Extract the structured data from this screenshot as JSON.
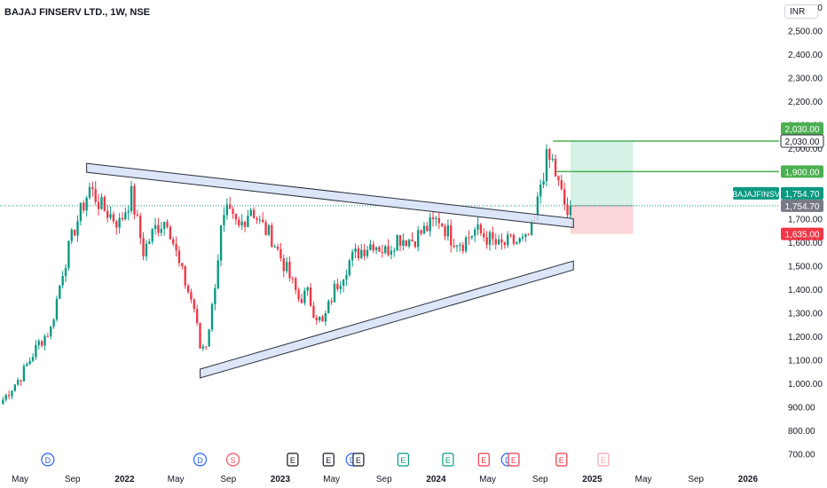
{
  "header": {
    "symbol_line": "BAJAJ FINSERV LTD., 1W, NSE",
    "currency": "INR"
  },
  "colors": {
    "up": "#089981",
    "down": "#f23645",
    "trendline_fill": "#d6e2f7",
    "trendline_stroke": "#2a2e39",
    "target_zone": "#d6f1e6",
    "stop_zone": "#fbd5d9",
    "level_green": "#4caf50",
    "price_tag_teal": "#089981",
    "last_price_gray": "#787b86",
    "stop_tag_red": "#f23645"
  },
  "chart_data": {
    "type": "candlestick",
    "timeframe": "1W",
    "yaxis_ticks": [
      "2,600.00",
      "2,500.00",
      "2,400.00",
      "2,300.00",
      "2,200.00",
      "2,100.00",
      "2,000.00",
      "1,900.00",
      "1,800.00",
      "1,700.00",
      "1,600.00",
      "1,500.00",
      "1,400.00",
      "1,300.00",
      "1,200.00",
      "1,100.00",
      "1,000.00",
      "900.00",
      "800.00",
      "700.00"
    ],
    "yaxis_tick_values": [
      2600,
      2500,
      2400,
      2300,
      2200,
      2100,
      2000,
      1900,
      1800,
      1700,
      1600,
      1500,
      1400,
      1300,
      1200,
      1100,
      1000,
      900,
      800,
      700
    ],
    "ylim": [
      660,
      2630
    ],
    "xaxis_ticks": [
      {
        "label": "May",
        "date": "2021-05-01",
        "bold": false
      },
      {
        "label": "Sep",
        "date": "2021-09-01",
        "bold": false
      },
      {
        "label": "2022",
        "date": "2022-01-01",
        "bold": true
      },
      {
        "label": "May",
        "date": "2022-05-01",
        "bold": false
      },
      {
        "label": "Sep",
        "date": "2022-09-01",
        "bold": false
      },
      {
        "label": "2023",
        "date": "2023-01-01",
        "bold": true
      },
      {
        "label": "May",
        "date": "2023-05-01",
        "bold": false
      },
      {
        "label": "Sep",
        "date": "2023-09-01",
        "bold": false
      },
      {
        "label": "2024",
        "date": "2024-01-01",
        "bold": true
      },
      {
        "label": "May",
        "date": "2024-05-01",
        "bold": false
      },
      {
        "label": "Sep",
        "date": "2024-09-01",
        "bold": false
      },
      {
        "label": "2025",
        "date": "2025-01-01",
        "bold": true
      },
      {
        "label": "May",
        "date": "2025-05-01",
        "bold": false
      },
      {
        "label": "Sep",
        "date": "2025-09-01",
        "bold": false
      },
      {
        "label": "2026",
        "date": "2026-01-01",
        "bold": true
      }
    ],
    "xlim": [
      "2021-03-15",
      "2026-03-15"
    ],
    "price_anchors": [
      [
        "2021-03-22",
        930
      ],
      [
        "2021-05-03",
        1030
      ],
      [
        "2021-06-14",
        1170
      ],
      [
        "2021-07-12",
        1230
      ],
      [
        "2021-08-09",
        1480
      ],
      [
        "2021-09-06",
        1660
      ],
      [
        "2021-10-11",
        1830
      ],
      [
        "2021-11-08",
        1750
      ],
      [
        "2021-12-20",
        1680
      ],
      [
        "2022-01-17",
        1800
      ],
      [
        "2022-02-14",
        1560
      ],
      [
        "2022-03-14",
        1660
      ],
      [
        "2022-04-11",
        1700
      ],
      [
        "2022-05-09",
        1500
      ],
      [
        "2022-06-13",
        1320
      ],
      [
        "2022-06-27",
        1150
      ],
      [
        "2022-07-11",
        1170
      ],
      [
        "2022-07-25",
        1320
      ],
      [
        "2022-08-15",
        1650
      ],
      [
        "2022-08-29",
        1720
      ],
      [
        "2022-09-26",
        1660
      ],
      [
        "2022-10-24",
        1750
      ],
      [
        "2022-11-14",
        1680
      ],
      [
        "2022-12-12",
        1620
      ],
      [
        "2023-01-16",
        1480
      ],
      [
        "2023-02-13",
        1360
      ],
      [
        "2023-03-06",
        1380
      ],
      [
        "2023-03-20",
        1310
      ],
      [
        "2023-04-10",
        1250
      ],
      [
        "2023-05-08",
        1400
      ],
      [
        "2023-06-12",
        1520
      ],
      [
        "2023-07-03",
        1560
      ],
      [
        "2023-08-07",
        1600
      ],
      [
        "2023-09-04",
        1560
      ],
      [
        "2023-10-02",
        1620
      ],
      [
        "2023-11-06",
        1610
      ],
      [
        "2023-12-11",
        1660
      ],
      [
        "2024-01-08",
        1700
      ],
      [
        "2024-02-05",
        1620
      ],
      [
        "2024-03-04",
        1600
      ],
      [
        "2024-04-01",
        1650
      ],
      [
        "2024-04-29",
        1620
      ],
      [
        "2024-05-27",
        1580
      ],
      [
        "2024-06-24",
        1600
      ],
      [
        "2024-07-29",
        1600
      ],
      [
        "2024-08-19",
        1680
      ],
      [
        "2024-09-02",
        1850
      ],
      [
        "2024-09-16",
        1950
      ],
      [
        "2024-09-30",
        1940
      ],
      [
        "2024-10-14",
        1840
      ],
      [
        "2024-10-28",
        1760
      ],
      [
        "2024-11-04",
        1720
      ],
      [
        "2024-11-11",
        1754.7
      ]
    ],
    "trendlines": [
      {
        "name": "upper",
        "from": [
          "2021-10-04",
          1935
        ],
        "to": [
          "2024-11-18",
          1700
        ]
      },
      {
        "name": "lower",
        "from": [
          "2022-06-27",
          1060
        ],
        "to": [
          "2024-11-18",
          1520
        ]
      }
    ],
    "position": {
      "entry": 1754.7,
      "target": 2030.0,
      "stop": 1635.0,
      "start": "2024-11-11",
      "end": "2025-04-07"
    },
    "horizontal_levels": [
      {
        "value": 2030.0,
        "start": "2024-10-01"
      },
      {
        "value": 1900.0,
        "start": "2024-10-07"
      }
    ],
    "price_labels": [
      {
        "text": "2,030.00",
        "value": 2030,
        "style": "green",
        "offset": -14
      },
      {
        "text": "2,030.00",
        "value": 2030,
        "style": "white",
        "offset": 0
      },
      {
        "text": "1,900.00",
        "value": 1900,
        "style": "green",
        "offset": 0
      },
      {
        "text": "1,754.70",
        "value": 1754.7,
        "style": "teal",
        "offset": -14
      },
      {
        "text": "1,754.70",
        "value": 1754.7,
        "style": "gray",
        "offset": 0
      },
      {
        "text": "1,635.00",
        "value": 1635,
        "style": "red",
        "offset": 0
      }
    ],
    "symbol_tag": "BAJAJFINSV",
    "event_markers": [
      {
        "letter": "D",
        "date": "2021-07-05",
        "kind": "dividend"
      },
      {
        "letter": "D",
        "date": "2022-06-27",
        "kind": "dividend"
      },
      {
        "letter": "S",
        "date": "2022-09-12",
        "kind": "split"
      },
      {
        "letter": "E",
        "date": "2023-01-30",
        "kind": "earnings-past"
      },
      {
        "letter": "E",
        "date": "2023-04-24",
        "kind": "earnings-past"
      },
      {
        "letter": "D",
        "date": "2023-06-19",
        "kind": "dividend"
      },
      {
        "letter": "E",
        "date": "2023-07-03",
        "kind": "earnings-past"
      },
      {
        "letter": "E",
        "date": "2023-10-16",
        "kind": "earnings-up"
      },
      {
        "letter": "E",
        "date": "2024-01-29",
        "kind": "earnings-up"
      },
      {
        "letter": "E",
        "date": "2024-04-22",
        "kind": "earnings-down"
      },
      {
        "letter": "D",
        "date": "2024-06-17",
        "kind": "dividend"
      },
      {
        "letter": "E",
        "date": "2024-07-01",
        "kind": "earnings-down"
      },
      {
        "letter": "E",
        "date": "2024-10-21",
        "kind": "earnings-down"
      },
      {
        "letter": "E",
        "date": "2025-01-27",
        "kind": "earnings-future"
      }
    ]
  }
}
